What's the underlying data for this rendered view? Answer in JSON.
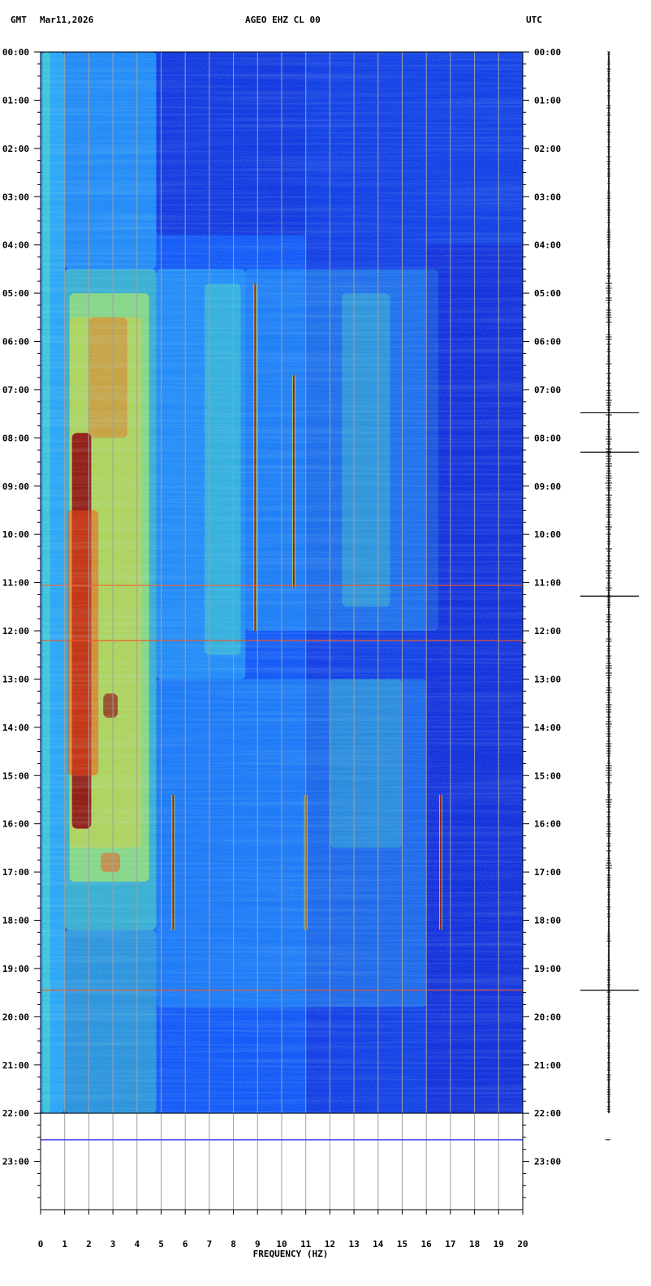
{
  "header": {
    "left_zone": "GMT",
    "date": "Mar11,2026",
    "station": "AGEO EHZ CL 00",
    "right_zone": "UTC"
  },
  "chart_data": {
    "type": "heatmap",
    "xlabel": "FREQUENCY (HZ)",
    "ylabel": "",
    "xlim": [
      0,
      20
    ],
    "ylim_hours": [
      0,
      24
    ],
    "x_ticks": [
      "0",
      "1",
      "2",
      "3",
      "4",
      "5",
      "6",
      "7",
      "8",
      "9",
      "10",
      "11",
      "12",
      "13",
      "14",
      "15",
      "16",
      "17",
      "18",
      "19",
      "20"
    ],
    "y_ticks": [
      "00:00",
      "01:00",
      "02:00",
      "03:00",
      "04:00",
      "05:00",
      "06:00",
      "07:00",
      "08:00",
      "09:00",
      "10:00",
      "11:00",
      "12:00",
      "13:00",
      "14:00",
      "15:00",
      "16:00",
      "17:00",
      "18:00",
      "19:00",
      "20:00",
      "21:00",
      "22:00",
      "23:00"
    ],
    "data_end_hour": 22.0,
    "current_time_line_hour": 22.55,
    "color_scale": [
      "#0000c8",
      "#0050ff",
      "#20b4ff",
      "#40e0c0",
      "#c8ff40",
      "#ffd000",
      "#ff4000",
      "#8c0000"
    ],
    "grid_color": "#a0a0a0",
    "now_line_color": "#4040ff",
    "features": [
      {
        "name": "tremor-band",
        "freq_range": [
          1.3,
          2.0
        ],
        "time_range": [
          7.9,
          16.1
        ],
        "level": "high"
      },
      {
        "name": "low-freq-band",
        "freq_range": [
          1.0,
          4.8
        ],
        "time_range": [
          4.5,
          18.0
        ],
        "level": "moderate"
      },
      {
        "name": "line-8.9hz",
        "freq": 8.9,
        "time_range": [
          4.8,
          12.0
        ]
      },
      {
        "name": "line-10.5hz",
        "freq": 10.5,
        "time_range": [
          6.7,
          11.1
        ]
      },
      {
        "name": "line-5.5hz",
        "freq": 5.5,
        "time_range": [
          15.4,
          18.2
        ]
      },
      {
        "name": "line-11hz",
        "freq": 11.0,
        "time_range": [
          15.4,
          18.2
        ]
      },
      {
        "name": "line-16.6hz",
        "freq": 16.6,
        "time_range": [
          15.4,
          18.2
        ]
      },
      {
        "name": "event",
        "hour": 11.06
      },
      {
        "name": "event",
        "hour": 12.2
      },
      {
        "name": "event",
        "hour": 19.45
      }
    ],
    "trace_spikes_hours": [
      7.48,
      8.3,
      11.28,
      19.45
    ]
  }
}
